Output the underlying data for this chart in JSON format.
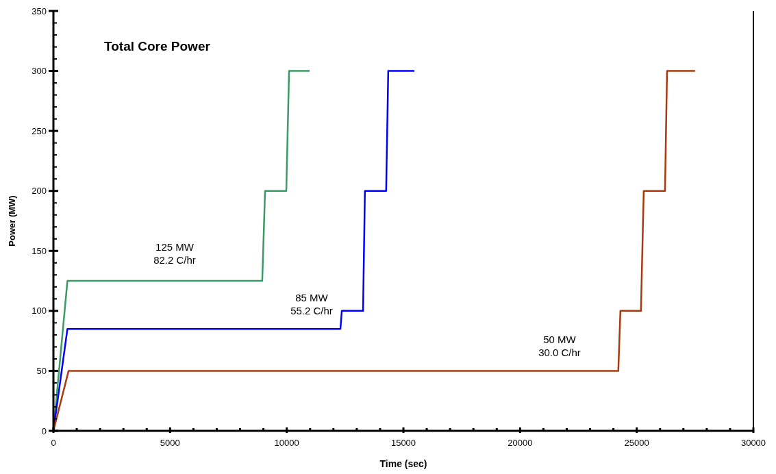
{
  "chart_data": {
    "type": "line",
    "title": "Total Core Power",
    "xlabel": "Time (sec)",
    "ylabel": "Power (MW)",
    "xlim": [
      0,
      30000
    ],
    "ylim": [
      0,
      350
    ],
    "xticks": [
      0,
      {
        "value": 1000,
        "label": null
      },
      {
        "value": 2000,
        "label": null
      },
      {
        "value": 3000,
        "label": null
      },
      {
        "value": 4000,
        "label": null
      },
      5000,
      {
        "value": 6000,
        "label": null
      },
      {
        "value": 7000,
        "label": null
      },
      {
        "value": 8000,
        "label": null
      },
      {
        "value": 9000,
        "label": null
      },
      10000,
      {
        "value": 11000,
        "label": null
      },
      {
        "value": 12000,
        "label": null
      },
      {
        "value": 13000,
        "label": null
      },
      {
        "value": 14000,
        "label": null
      },
      15000,
      {
        "value": 16000,
        "label": null
      },
      {
        "value": 17000,
        "label": null
      },
      {
        "value": 18000,
        "label": null
      },
      {
        "value": 19000,
        "label": null
      },
      20000,
      {
        "value": 21000,
        "label": null
      },
      {
        "value": 22000,
        "label": null
      },
      {
        "value": 23000,
        "label": null
      },
      {
        "value": 24000,
        "label": null
      },
      25000,
      {
        "value": 26000,
        "label": null
      },
      {
        "value": 27000,
        "label": null
      },
      {
        "value": 28000,
        "label": null
      },
      {
        "value": 29000,
        "label": null
      },
      30000
    ],
    "yticks": [
      0,
      {
        "value": 10,
        "label": null
      },
      {
        "value": 20,
        "label": null
      },
      {
        "value": 30,
        "label": null
      },
      {
        "value": 40,
        "label": null
      },
      50,
      {
        "value": 60,
        "label": null
      },
      {
        "value": 70,
        "label": null
      },
      {
        "value": 80,
        "label": null
      },
      {
        "value": 90,
        "label": null
      },
      100,
      {
        "value": 110,
        "label": null
      },
      {
        "value": 120,
        "label": null
      },
      {
        "value": 130,
        "label": null
      },
      {
        "value": 140,
        "label": null
      },
      150,
      {
        "value": 160,
        "label": null
      },
      {
        "value": 170,
        "label": null
      },
      {
        "value": 180,
        "label": null
      },
      {
        "value": 190,
        "label": null
      },
      200,
      {
        "value": 210,
        "label": null
      },
      {
        "value": 220,
        "label": null
      },
      {
        "value": 230,
        "label": null
      },
      {
        "value": 240,
        "label": null
      },
      250,
      {
        "value": 260,
        "label": null
      },
      {
        "value": 270,
        "label": null
      },
      {
        "value": 280,
        "label": null
      },
      {
        "value": 290,
        "label": null
      },
      300,
      {
        "value": 310,
        "label": null
      },
      {
        "value": 320,
        "label": null
      },
      {
        "value": 330,
        "label": null
      },
      {
        "value": 340,
        "label": null
      },
      350
    ],
    "series": [
      {
        "color": "#3a9a66",
        "x": [
          0,
          600,
          8950,
          9070,
          9980,
          10100,
          10980
        ],
        "values": [
          0,
          125,
          125,
          200,
          200,
          300,
          300
        ]
      },
      {
        "color": "#0000ff",
        "x": [
          0,
          600,
          12300,
          12360,
          13270,
          13350,
          14260,
          14350,
          15470
        ],
        "values": [
          0,
          85,
          85,
          100,
          100,
          200,
          200,
          300,
          300
        ]
      },
      {
        "color": "#a83a10",
        "x": [
          0,
          650,
          24210,
          24300,
          25180,
          25300,
          26210,
          26300,
          27500
        ],
        "values": [
          0,
          50,
          50,
          100,
          100,
          200,
          200,
          300,
          300
        ]
      }
    ],
    "annotations": [
      "125 MW\n82.2 C/hr",
      "85 MW\n55.2 C/hr",
      "50 MW\n30.0 C/hr"
    ],
    "grid": false,
    "marker": "none",
    "line_style": "solid"
  }
}
